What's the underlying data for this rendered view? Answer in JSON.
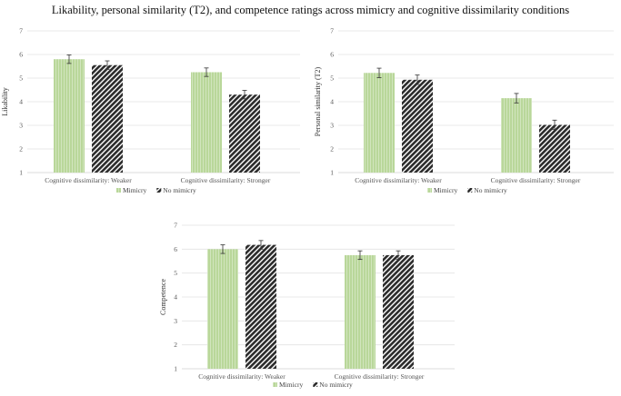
{
  "title": "Likability, personal similarity (T2), and competence ratings across mimicry and cognitive dissimilarity conditions",
  "legend": [
    "Mimicry",
    "No mimicry"
  ],
  "colors": {
    "mimicry": "#b9d79a",
    "no_mimicry": "#2b2b2b"
  },
  "chart_data": [
    {
      "type": "bar",
      "ylabel": "Likability",
      "ylim": [
        1,
        7
      ],
      "yticks": [
        1,
        2,
        3,
        4,
        5,
        6,
        7
      ],
      "categories": [
        "Cognitive dissimilarity: Weaker",
        "Cognitive dissimilarity: Stronger"
      ],
      "series": [
        {
          "name": "Mimicry",
          "values": [
            5.8,
            5.25
          ],
          "errors": [
            0.18,
            0.18
          ]
        },
        {
          "name": "No mimicry",
          "values": [
            5.55,
            4.3
          ],
          "errors": [
            0.18,
            0.18
          ]
        }
      ],
      "legend_position": "bottom",
      "grid": true
    },
    {
      "type": "bar",
      "ylabel": "Personal similarity (T2)",
      "ylim": [
        1,
        7
      ],
      "yticks": [
        1,
        2,
        3,
        4,
        5,
        6,
        7
      ],
      "categories": [
        "Cognitive dissimilarity: Weaker",
        "Cognitive dissimilarity: Stronger"
      ],
      "series": [
        {
          "name": "Mimicry",
          "values": [
            5.22,
            4.15
          ],
          "errors": [
            0.2,
            0.2
          ]
        },
        {
          "name": "No mimicry",
          "values": [
            4.93,
            3.02
          ],
          "errors": [
            0.2,
            0.2
          ]
        }
      ],
      "legend_position": "bottom",
      "grid": true
    },
    {
      "type": "bar",
      "ylabel": "Competence",
      "ylim": [
        1,
        7
      ],
      "yticks": [
        1,
        2,
        3,
        4,
        5,
        6,
        7
      ],
      "categories": [
        "Cognitive dissimilarity: Weaker",
        "Cognitive dissimilarity: Stronger"
      ],
      "series": [
        {
          "name": "Mimicry",
          "values": [
            6.0,
            5.75
          ],
          "errors": [
            0.18,
            0.18
          ]
        },
        {
          "name": "No mimicry",
          "values": [
            6.18,
            5.75
          ],
          "errors": [
            0.18,
            0.18
          ]
        }
      ],
      "legend_position": "bottom",
      "grid": true
    }
  ]
}
